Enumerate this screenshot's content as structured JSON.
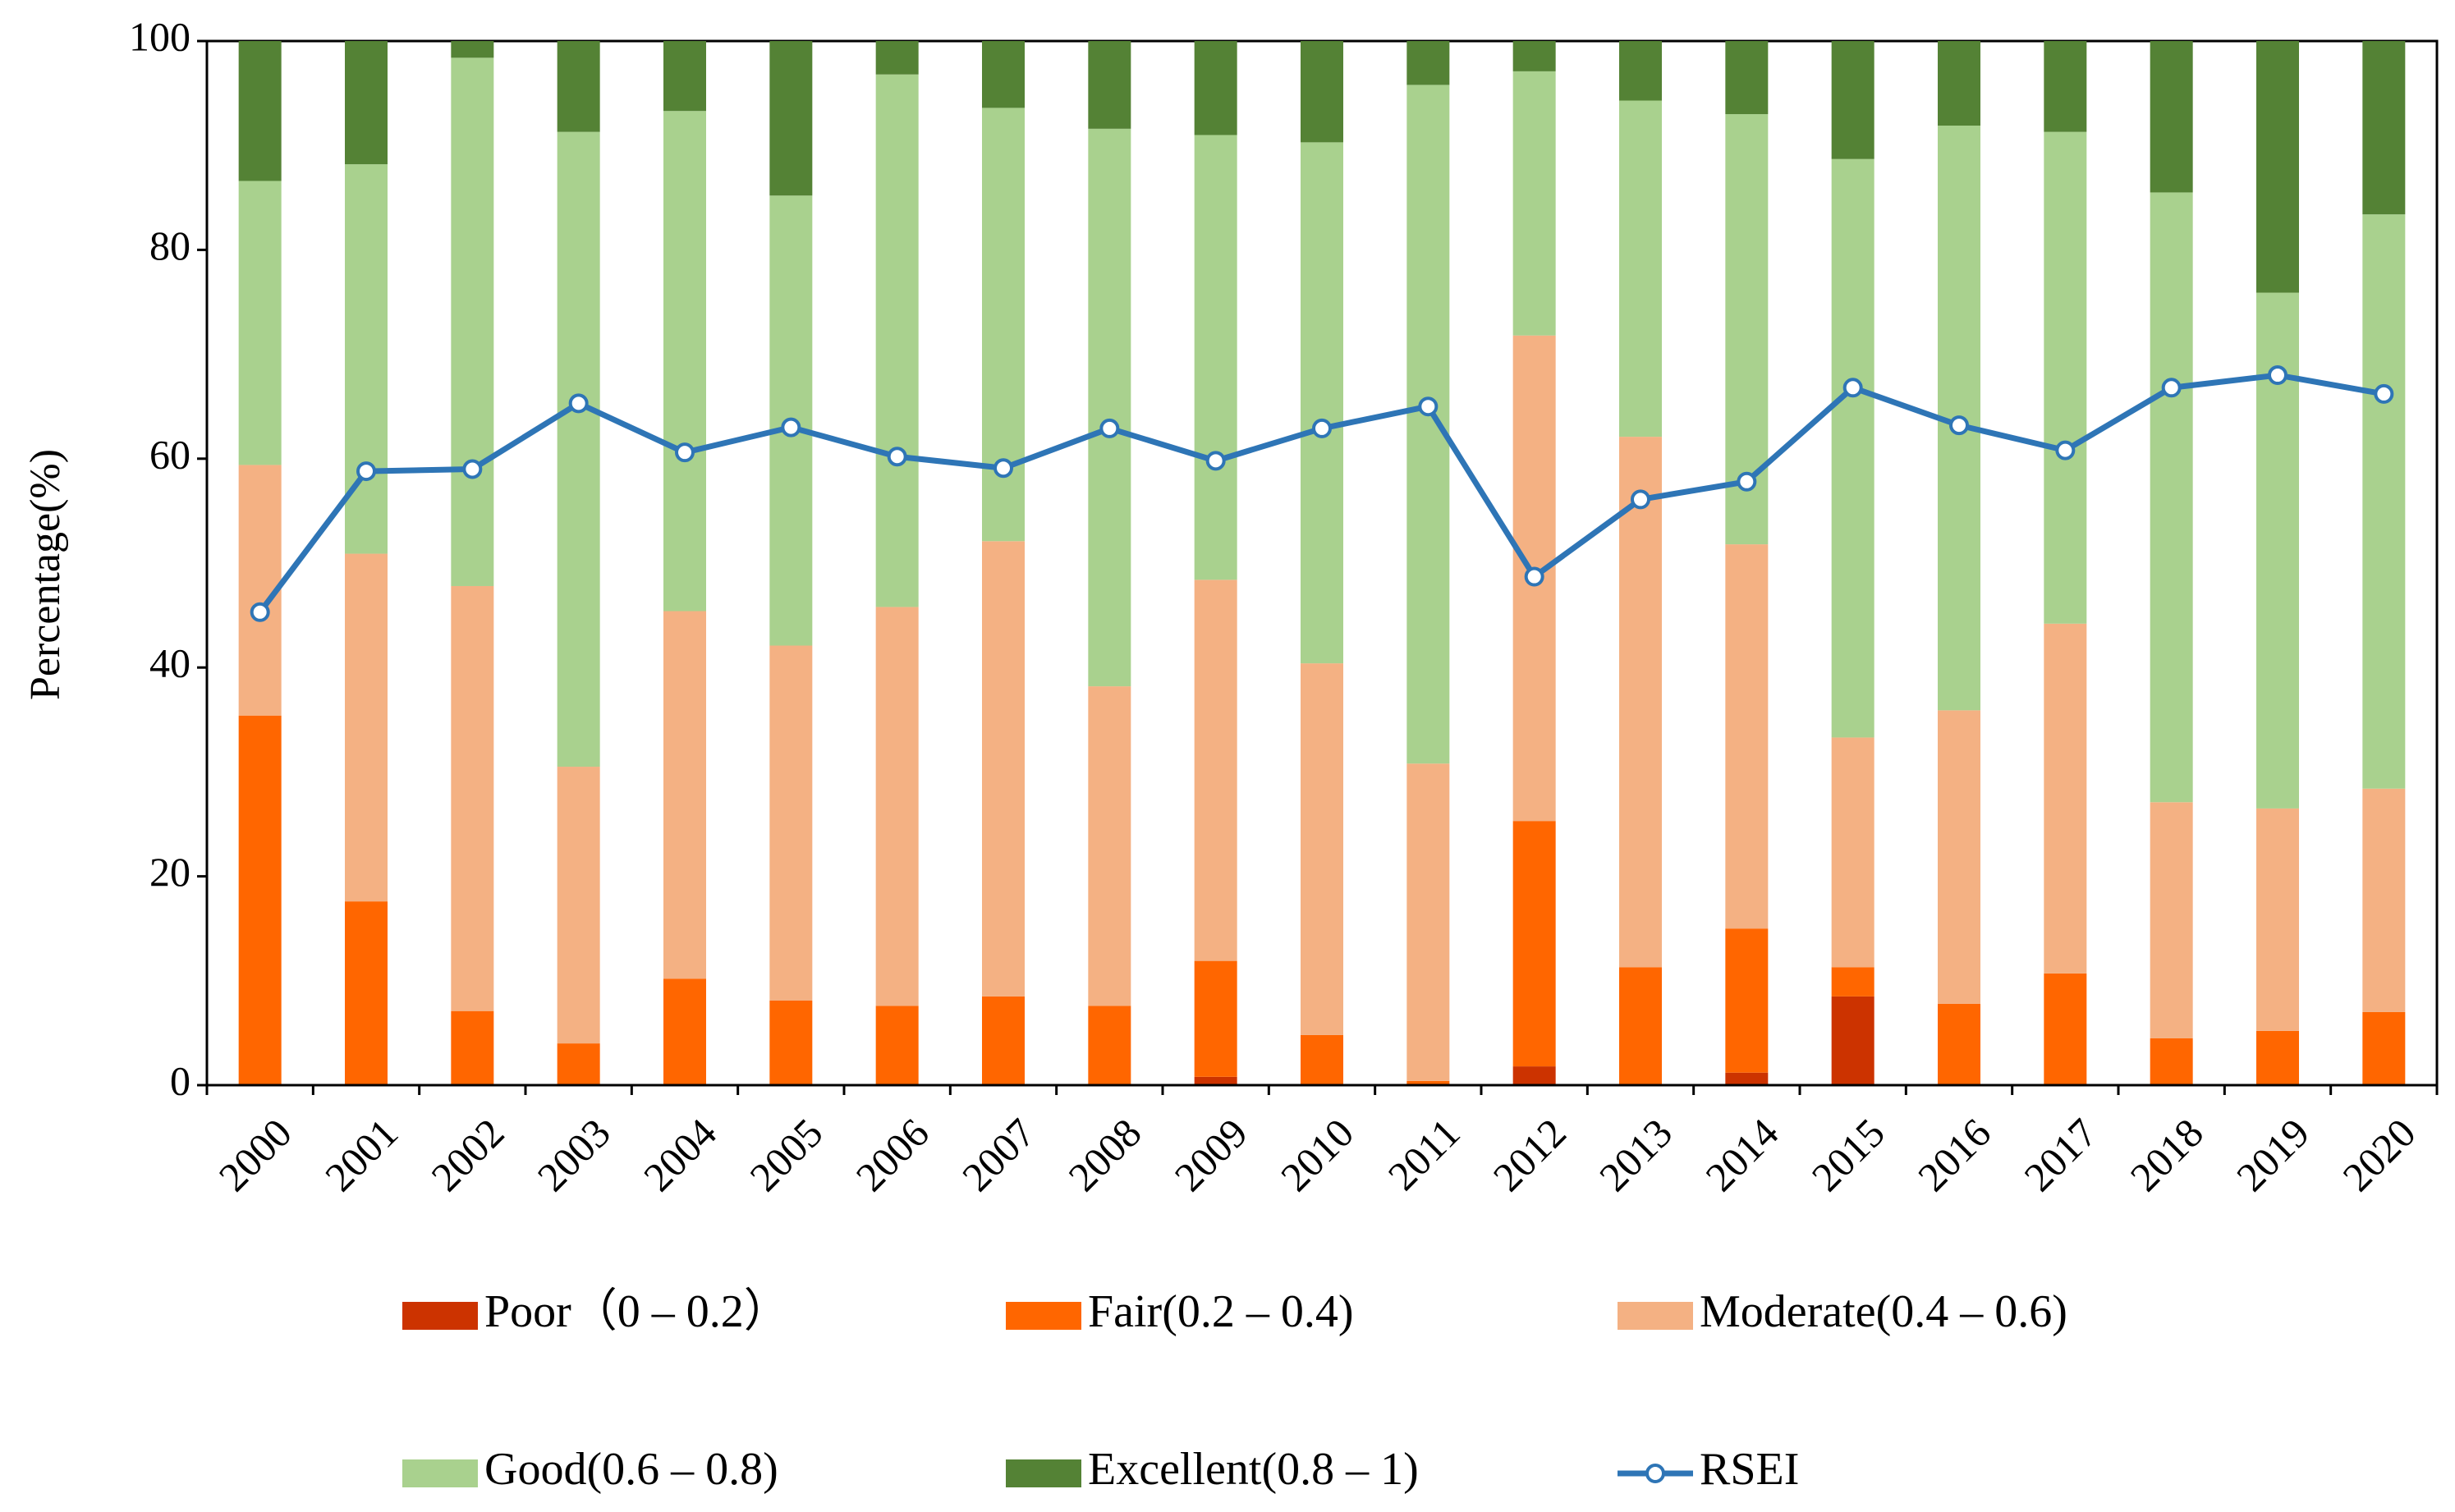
{
  "chart_data": {
    "type": "bar",
    "stacked": true,
    "title": "",
    "xlabel": "",
    "ylabel": "Percentage(%)",
    "ylim": [
      0,
      100
    ],
    "yticks": [
      "0",
      "20",
      "40",
      "60",
      "80",
      "100"
    ],
    "categories": [
      "2000",
      "2001",
      "2002",
      "2003",
      "2004",
      "2005",
      "2006",
      "2007",
      "2008",
      "2009",
      "2010",
      "2011",
      "2012",
      "2013",
      "2014",
      "2015",
      "2016",
      "2017",
      "2018",
      "2019",
      "2020"
    ],
    "series": [
      {
        "name": "Poor（0 – 0.2）",
        "color": "#cc3300",
        "values": [
          0.0,
          0.0,
          0.0,
          0.0,
          0.0,
          0.0,
          0.0,
          0.0,
          0.0,
          0.8,
          0.0,
          0.0,
          1.8,
          0.0,
          1.2,
          8.5,
          0.0,
          0.0,
          0.0,
          0.0,
          0.0
        ]
      },
      {
        "name": "Fair(0.2 – 0.4)",
        "color": "#ff6600",
        "values": [
          35.4,
          17.6,
          7.1,
          4.0,
          10.2,
          8.1,
          7.6,
          8.5,
          7.6,
          11.1,
          4.8,
          0.4,
          23.5,
          11.3,
          13.8,
          2.8,
          7.8,
          10.7,
          4.5,
          5.2,
          7.0
        ]
      },
      {
        "name": "Moderate(0.4 – 0.6)",
        "color": "#f4b183",
        "values": [
          24.0,
          33.3,
          40.7,
          26.5,
          35.2,
          34.0,
          38.2,
          43.6,
          30.6,
          36.5,
          35.6,
          30.4,
          46.5,
          50.8,
          36.8,
          22.0,
          28.1,
          33.5,
          22.6,
          21.3,
          21.4
        ]
      },
      {
        "name": "Good(0.6 – 0.8)",
        "color": "#a9d18e",
        "values": [
          27.2,
          37.3,
          50.6,
          60.8,
          47.9,
          43.1,
          51.0,
          41.5,
          53.4,
          42.6,
          49.9,
          65.0,
          25.3,
          32.2,
          41.2,
          55.4,
          56.0,
          47.1,
          58.4,
          49.4,
          55.0
        ]
      },
      {
        "name": "Excellent(0.8 – 1)",
        "color": "#548235",
        "values": [
          13.4,
          11.8,
          1.6,
          8.7,
          6.7,
          14.8,
          3.2,
          6.4,
          8.4,
          9.0,
          9.7,
          4.2,
          2.9,
          5.7,
          7.0,
          11.3,
          8.1,
          8.7,
          14.5,
          24.1,
          16.6
        ]
      }
    ],
    "line_series": {
      "name": "RSEI",
      "color": "#2e75b6",
      "values": [
        45.3,
        58.8,
        59.0,
        65.3,
        60.6,
        63.0,
        60.2,
        59.1,
        62.9,
        59.8,
        62.9,
        65.0,
        48.7,
        56.1,
        57.8,
        66.8,
        63.2,
        60.8,
        66.8,
        68.0,
        66.2
      ]
    },
    "legend": {
      "placement": "bottom",
      "rows": [
        [
          "Poor（0 – 0.2）",
          "Fair(0.2 – 0.4)",
          "Moderate(0.4 – 0.6)"
        ],
        [
          "Good(0.6 – 0.8)",
          "Excellent(0.8 – 1)",
          "RSEI"
        ]
      ]
    }
  }
}
